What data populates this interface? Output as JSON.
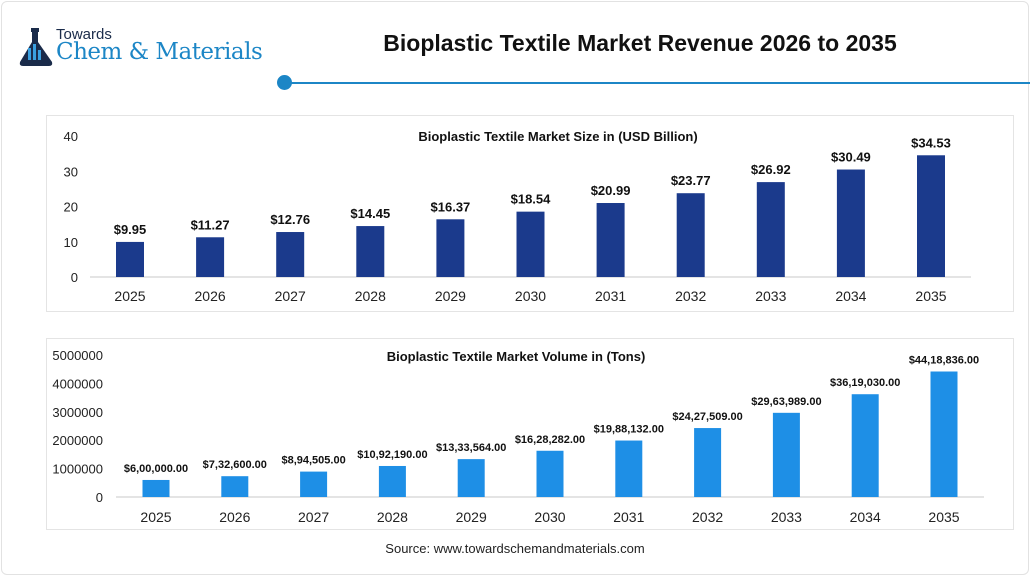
{
  "header": {
    "logo_top": "Towards",
    "logo_main": "Chem & Materials",
    "title": "Bioplastic Textile Market Revenue 2026 to 2035",
    "accent_color": "#1c86c6"
  },
  "chart_data": [
    {
      "type": "bar",
      "title": "Bioplastic Textile Market Size in (USD Billion)",
      "categories": [
        "2025",
        "2026",
        "2027",
        "2028",
        "2029",
        "2030",
        "2031",
        "2032",
        "2033",
        "2034",
        "2035"
      ],
      "values": [
        9.95,
        11.27,
        12.76,
        14.45,
        16.37,
        18.54,
        20.99,
        23.77,
        26.92,
        30.49,
        34.53
      ],
      "data_labels": [
        "$9.95",
        "$11.27",
        "$12.76",
        "$14.45",
        "$16.37",
        "$18.54",
        "$20.99",
        "$23.77",
        "$26.92",
        "$30.49",
        "$34.53"
      ],
      "yticks": [
        "0",
        "10",
        "20",
        "30",
        "40"
      ],
      "ylim": [
        0,
        40
      ],
      "grid": false,
      "color": "#1b3a8c"
    },
    {
      "type": "bar",
      "title": "Bioplastic Textile Market Volume in (Tons)",
      "categories": [
        "2025",
        "2026",
        "2027",
        "2028",
        "2029",
        "2030",
        "2031",
        "2032",
        "2033",
        "2034",
        "2035"
      ],
      "values": [
        600000,
        732600,
        894505,
        1092190,
        1333564,
        1628282,
        1988132,
        2427509,
        2963989,
        3619030,
        4418836
      ],
      "data_labels": [
        "$6,00,000.00",
        "$7,32,600.00",
        "$8,94,505.00",
        "$10,92,190.00",
        "$13,33,564.00",
        "$16,28,282.00",
        "$19,88,132.00",
        "$24,27,509.00",
        "$29,63,989.00",
        "$36,19,030.00",
        "$44,18,836.00"
      ],
      "yticks": [
        "0",
        "1000000",
        "2000000",
        "3000000",
        "4000000",
        "5000000"
      ],
      "ylim": [
        0,
        5000000
      ],
      "grid": false,
      "color": "#1e8fe6"
    }
  ],
  "footer": {
    "source": "Source: www.towardschemandmaterials.com"
  }
}
